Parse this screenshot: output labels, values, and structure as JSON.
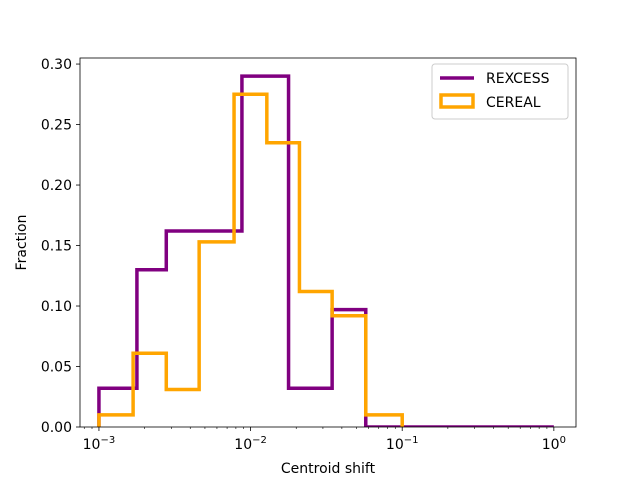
{
  "chart_data": {
    "type": "line",
    "title": "",
    "xlabel": "Centroid shift",
    "ylabel": "Fraction",
    "xscale": "log",
    "xlim": [
      0.00075,
      1.4
    ],
    "ylim": [
      0,
      0.305
    ],
    "grid": false,
    "legend_position": "top-right",
    "x_ticks": [
      {
        "value": 0.001,
        "base": "10",
        "exp": "−3"
      },
      {
        "value": 0.01,
        "base": "10",
        "exp": "−2"
      },
      {
        "value": 0.1,
        "base": "10",
        "exp": "−1"
      },
      {
        "value": 1,
        "base": "10",
        "exp": "0"
      }
    ],
    "y_ticks": [
      {
        "value": 0,
        "label": "0.00"
      },
      {
        "value": 0.05,
        "label": "0.05"
      },
      {
        "value": 0.1,
        "label": "0.10"
      },
      {
        "value": 0.15,
        "label": "0.15"
      },
      {
        "value": 0.2,
        "label": "0.20"
      },
      {
        "value": 0.25,
        "label": "0.25"
      },
      {
        "value": 0.3,
        "label": "0.30"
      }
    ],
    "series": [
      {
        "name": "REXCESS",
        "color": "#800080",
        "style": "step",
        "edges": [
          0.001,
          0.00178,
          0.00278,
          0.00877,
          0.0178,
          0.0345,
          0.0575,
          0.1,
          1
        ],
        "values": [
          0.032,
          0.13,
          0.162,
          0.29,
          0.032,
          0.097,
          0.0,
          0.0
        ]
      },
      {
        "name": "CEREAL",
        "color": "#FFA500",
        "style": "step",
        "edges": [
          0.001,
          0.00168,
          0.00278,
          0.00458,
          0.00778,
          0.0128,
          0.021,
          0.0345,
          0.0575,
          0.1
        ],
        "values": [
          0.01,
          0.061,
          0.031,
          0.153,
          0.275,
          0.235,
          0.112,
          0.092,
          0.01
        ]
      }
    ]
  }
}
